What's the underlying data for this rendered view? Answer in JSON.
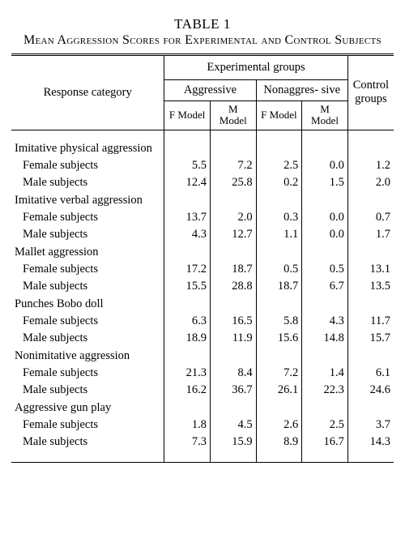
{
  "table_label": "TABLE 1",
  "caption": "Mean Aggression Scores for Experimental and Control Subjects",
  "headers": {
    "response": "Response category",
    "experimental": "Experimental groups",
    "aggressive": "Aggressive",
    "nonaggressive": "Nonaggres-\nsive",
    "control": "Control groups",
    "f_model": "F Model",
    "m_model": "M Model"
  },
  "categories": [
    {
      "name": "Imitative physical aggression",
      "rows": [
        {
          "label": "Female subjects",
          "vals": [
            "5.5",
            "7.2",
            "2.5",
            "0.0",
            "1.2"
          ]
        },
        {
          "label": "Male subjects",
          "vals": [
            "12.4",
            "25.8",
            "0.2",
            "1.5",
            "2.0"
          ]
        }
      ]
    },
    {
      "name": "Imitative verbal aggression",
      "rows": [
        {
          "label": "Female subjects",
          "vals": [
            "13.7",
            "2.0",
            "0.3",
            "0.0",
            "0.7"
          ]
        },
        {
          "label": "Male subjects",
          "vals": [
            "4.3",
            "12.7",
            "1.1",
            "0.0",
            "1.7"
          ]
        }
      ]
    },
    {
      "name": "Mallet aggression",
      "rows": [
        {
          "label": "Female subjects",
          "vals": [
            "17.2",
            "18.7",
            "0.5",
            "0.5",
            "13.1"
          ]
        },
        {
          "label": "Male subjects",
          "vals": [
            "15.5",
            "28.8",
            "18.7",
            "6.7",
            "13.5"
          ]
        }
      ]
    },
    {
      "name": "Punches Bobo doll",
      "rows": [
        {
          "label": "Female subjects",
          "vals": [
            "6.3",
            "16.5",
            "5.8",
            "4.3",
            "11.7"
          ]
        },
        {
          "label": "Male subjects",
          "vals": [
            "18.9",
            "11.9",
            "15.6",
            "14.8",
            "15.7"
          ]
        }
      ]
    },
    {
      "name": "Nonimitative aggression",
      "rows": [
        {
          "label": "Female subjects",
          "vals": [
            "21.3",
            "8.4",
            "7.2",
            "1.4",
            "6.1"
          ]
        },
        {
          "label": "Male subjects",
          "vals": [
            "16.2",
            "36.7",
            "26.1",
            "22.3",
            "24.6"
          ]
        }
      ]
    },
    {
      "name": "Aggressive gun play",
      "rows": [
        {
          "label": "Female subjects",
          "vals": [
            "1.8",
            "4.5",
            "2.6",
            "2.5",
            "3.7"
          ]
        },
        {
          "label": "Male subjects",
          "vals": [
            "7.3",
            "15.9",
            "8.9",
            "16.7",
            "14.3"
          ]
        }
      ]
    }
  ],
  "styling": {
    "type": "table",
    "background_color": "#ffffff",
    "text_color": "#000000",
    "rule_color": "#000000",
    "font_family": "Times New Roman (serif)",
    "body_fontsize_pt": 11,
    "caption_fontsize_pt": 12,
    "caption_variant": "small-caps",
    "double_rule_top": true,
    "single_rule_bottom": true,
    "column_alignment": [
      "left",
      "right",
      "right",
      "right",
      "right",
      "right"
    ],
    "column_widths_pct": [
      40,
      12,
      12,
      12,
      12,
      12
    ]
  }
}
